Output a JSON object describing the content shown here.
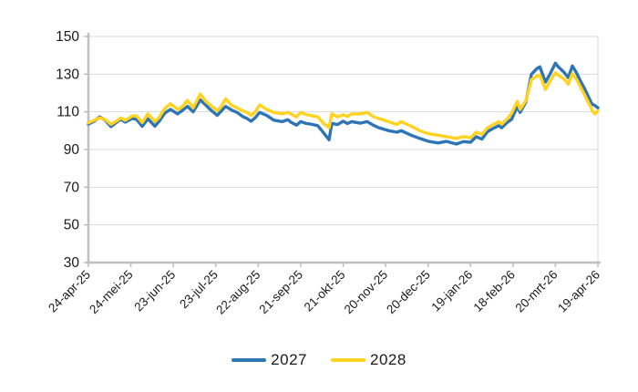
{
  "chart_data": {
    "type": "line",
    "title": "",
    "xlabel": "",
    "ylabel": "",
    "ylim": [
      30,
      150
    ],
    "y_ticks": [
      30,
      50,
      70,
      90,
      110,
      130,
      150
    ],
    "x_range_days": 360,
    "x_tick_days": [
      0,
      30,
      60,
      90,
      120,
      150,
      180,
      210,
      240,
      270,
      300,
      330,
      360
    ],
    "x_tick_labels": [
      "24-apr-25",
      "24-mei-25",
      "23-jun-25",
      "23-jul-25",
      "22-aug-25",
      "21-sep-25",
      "21-okt-25",
      "20-nov-25",
      "20-dec-25",
      "19-jan-26",
      "18-feb-26",
      "20-mrt-26",
      "19-apr-26"
    ],
    "grid": "horizontal",
    "legend_position": "bottom",
    "x_days": [
      0,
      4,
      8,
      12,
      16,
      20,
      23,
      26,
      31,
      34,
      38,
      42,
      47,
      50,
      54,
      58,
      63,
      66,
      70,
      74,
      79,
      83,
      86,
      91,
      94,
      97,
      101,
      105,
      109,
      112,
      115,
      118,
      121,
      126,
      131,
      137,
      141,
      143,
      147,
      150,
      154,
      157,
      162,
      166,
      170,
      172,
      176,
      180,
      183,
      186,
      192,
      197,
      201,
      205,
      212,
      218,
      221,
      228,
      234,
      240,
      247,
      253,
      260,
      265,
      270,
      274,
      278,
      282,
      286,
      290,
      292,
      296,
      299,
      303,
      305,
      309,
      313,
      317,
      319,
      323,
      326,
      330,
      332,
      336,
      339,
      342,
      345,
      348,
      351,
      355,
      356,
      358,
      360
    ],
    "series": [
      {
        "name": "2027",
        "color": "#2E75B6",
        "values": [
          103.5,
          105.0,
          107.3,
          105.5,
          102.2,
          104.5,
          106.0,
          104.5,
          106.5,
          106.0,
          102.3,
          106.3,
          102.4,
          105.0,
          109.3,
          111.3,
          108.9,
          110.5,
          112.9,
          110.0,
          116.3,
          113.5,
          111.3,
          108.1,
          110.5,
          112.9,
          111.0,
          109.7,
          107.5,
          106.5,
          105.0,
          107.0,
          109.7,
          108.1,
          105.6,
          104.8,
          105.8,
          104.5,
          102.9,
          104.8,
          103.8,
          103.5,
          102.7,
          99.0,
          95.2,
          103.9,
          103.2,
          105.0,
          103.8,
          104.8,
          104.0,
          104.8,
          103.0,
          101.6,
          100.0,
          99.2,
          100.0,
          97.6,
          95.9,
          94.4,
          93.5,
          94.3,
          92.9,
          94.2,
          93.8,
          96.8,
          95.5,
          99.5,
          101.2,
          102.7,
          101.5,
          104.4,
          106.0,
          112.9,
          109.7,
          115.0,
          129.8,
          133.0,
          133.9,
          125.8,
          129.8,
          135.8,
          133.9,
          131.1,
          128.2,
          134.3,
          130.6,
          125.8,
          121.8,
          115.3,
          114.0,
          113.3,
          112.1
        ]
      },
      {
        "name": "2028",
        "color": "#FFD320",
        "values": [
          104.2,
          105.5,
          106.8,
          105.8,
          103.4,
          105.2,
          106.8,
          105.5,
          107.8,
          107.8,
          104.3,
          108.9,
          104.8,
          107.0,
          111.8,
          114.3,
          111.3,
          112.5,
          116.1,
          112.1,
          119.4,
          115.5,
          113.7,
          110.5,
          113.0,
          116.9,
          113.5,
          112.1,
          110.5,
          109.7,
          108.1,
          110.0,
          113.7,
          111.3,
          109.7,
          108.9,
          109.7,
          108.9,
          107.3,
          109.7,
          108.5,
          108.1,
          107.3,
          104.0,
          101.6,
          108.9,
          107.3,
          108.5,
          107.5,
          108.9,
          108.9,
          109.7,
          107.5,
          106.5,
          104.8,
          103.2,
          104.8,
          102.4,
          100.0,
          98.4,
          97.6,
          96.8,
          95.9,
          96.8,
          96.2,
          99.3,
          98.0,
          101.5,
          103.2,
          104.8,
          103.4,
          106.3,
          109.2,
          115.5,
          111.3,
          115.8,
          127.1,
          129.0,
          129.5,
          121.9,
          126.1,
          130.8,
          129.5,
          127.6,
          124.7,
          130.3,
          127.1,
          122.7,
          118.4,
          112.5,
          110.5,
          108.9,
          110.5
        ]
      }
    ]
  },
  "legend": {
    "items": [
      {
        "label": "2027",
        "color": "#2E75B6"
      },
      {
        "label": "2028",
        "color": "#FFD320"
      }
    ]
  },
  "style": {
    "gridline_color": "#D9D9D9",
    "axis_color": "#BFBFBF",
    "tick_label_color": "#1a1a1a",
    "background": "#FFFFFF"
  }
}
